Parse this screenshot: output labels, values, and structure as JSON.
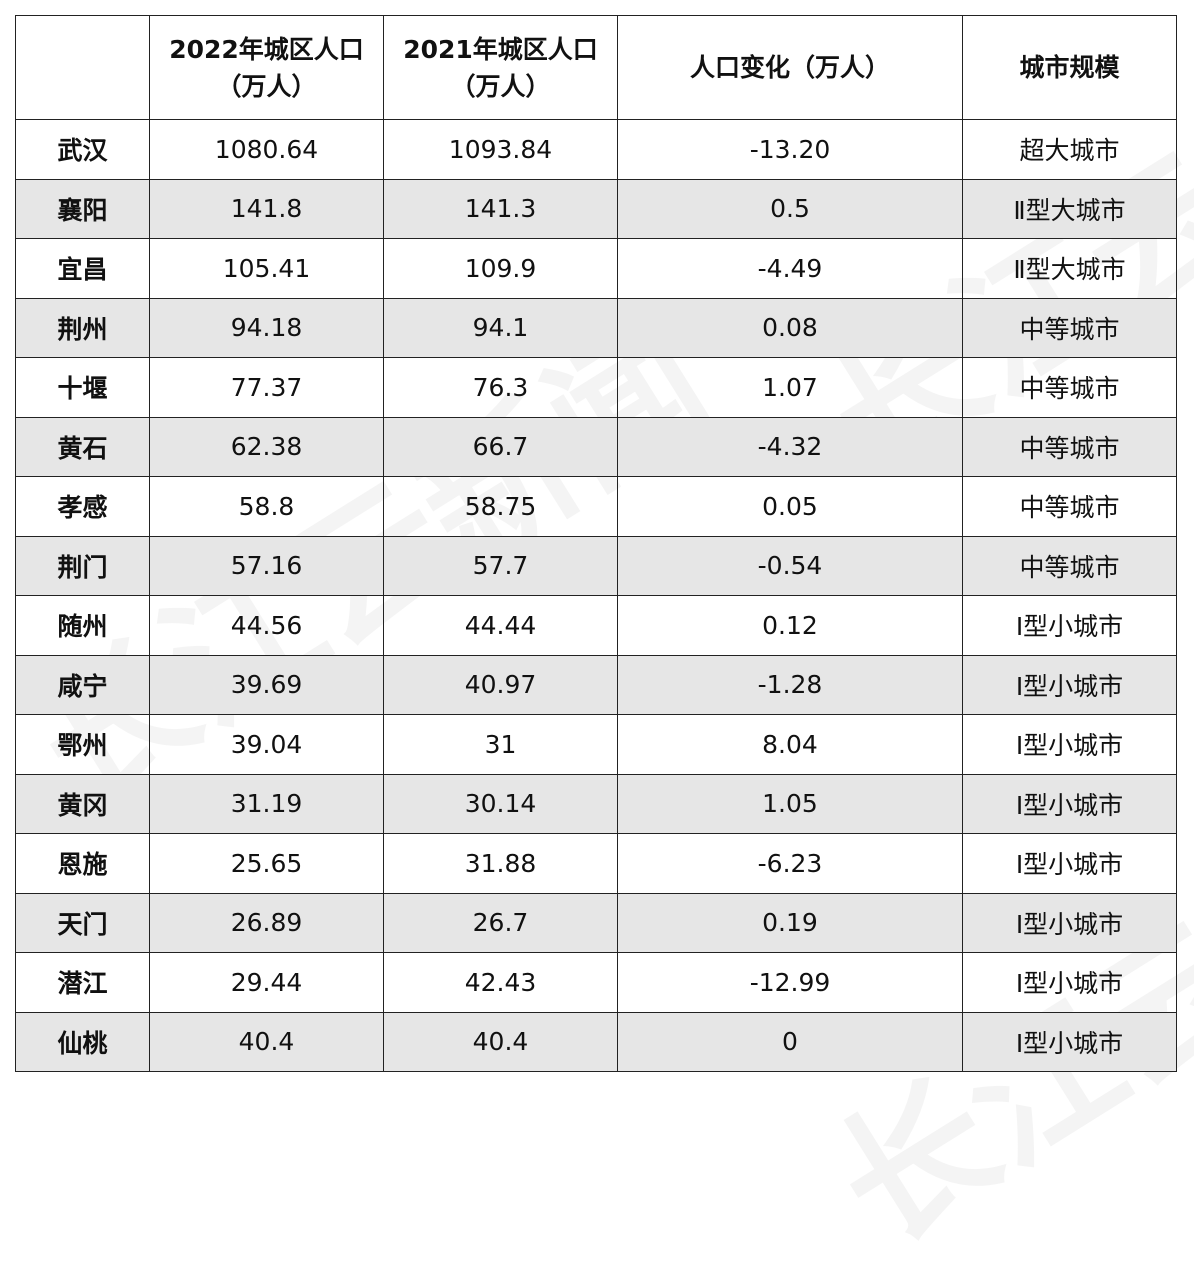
{
  "watermark": "长江云新闻",
  "table": {
    "headers": [
      "",
      [
        "2022年城区人口",
        "（万人）"
      ],
      [
        "2021年城区人口",
        "（万人）"
      ],
      "人口变化（万人）",
      "城市规模"
    ],
    "rows": [
      [
        "武汉",
        "1080.64",
        "1093.84",
        "-13.20",
        "超大城市"
      ],
      [
        "襄阳",
        "141.8",
        "141.3",
        "0.5",
        "Ⅱ型大城市"
      ],
      [
        "宜昌",
        "105.41",
        "109.9",
        "-4.49",
        "Ⅱ型大城市"
      ],
      [
        "荆州",
        "94.18",
        "94.1",
        "0.08",
        "中等城市"
      ],
      [
        "十堰",
        "77.37",
        "76.3",
        "1.07",
        "中等城市"
      ],
      [
        "黄石",
        "62.38",
        "66.7",
        "-4.32",
        "中等城市"
      ],
      [
        "孝感",
        "58.8",
        "58.75",
        "0.05",
        "中等城市"
      ],
      [
        "荆门",
        "57.16",
        "57.7",
        "-0.54",
        "中等城市"
      ],
      [
        "随州",
        "44.56",
        "44.44",
        "0.12",
        "Ⅰ型小城市"
      ],
      [
        "咸宁",
        "39.69",
        "40.97",
        "-1.28",
        "Ⅰ型小城市"
      ],
      [
        "鄂州",
        "39.04",
        "31",
        "8.04",
        "Ⅰ型小城市"
      ],
      [
        "黄冈",
        "31.19",
        "30.14",
        "1.05",
        "Ⅰ型小城市"
      ],
      [
        "恩施",
        "25.65",
        "31.88",
        "-6.23",
        "Ⅰ型小城市"
      ],
      [
        "天门",
        "26.89",
        "26.7",
        "0.19",
        "Ⅰ型小城市"
      ],
      [
        "潜江",
        "29.44",
        "42.43",
        "-12.99",
        "Ⅰ型小城市"
      ],
      [
        "仙桃",
        "40.4",
        "40.4",
        "0",
        "Ⅰ型小城市"
      ]
    ]
  }
}
